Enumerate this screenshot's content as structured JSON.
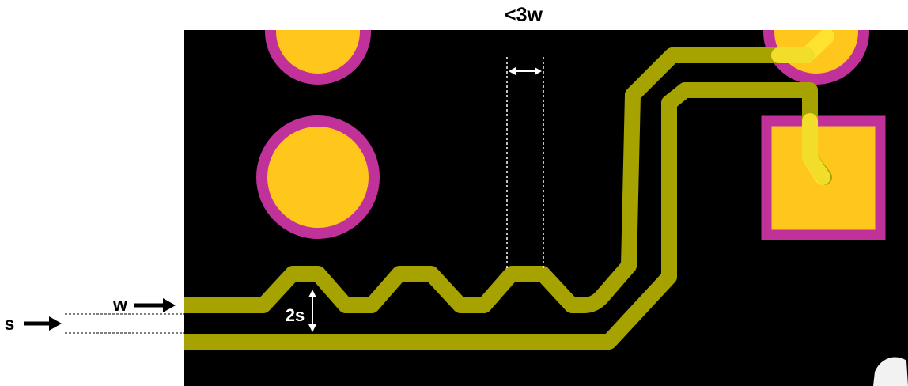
{
  "labels": {
    "top_spacing": "<3w",
    "trace_width": "w",
    "trace_spacing": "s",
    "serpentine_gap": "2s"
  },
  "colors": {
    "board": "#000000",
    "trace": "#a6a300",
    "pad_copper": "#ffc61c",
    "pad_ring": "#c0329a",
    "dim_line": "#ffffff",
    "arrow": "#000000"
  }
}
